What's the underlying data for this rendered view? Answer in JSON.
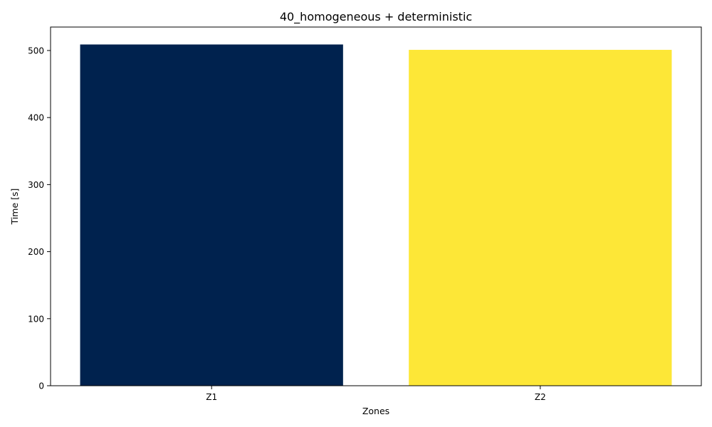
{
  "chart_data": {
    "type": "bar",
    "title": "40_homogeneous + deterministic",
    "xlabel": "Zones",
    "ylabel": "Time [s]",
    "categories": [
      "Z1",
      "Z2"
    ],
    "values": [
      509,
      501
    ],
    "bar_colors": [
      "#00224e",
      "#fde737"
    ],
    "ylim": [
      0,
      535
    ],
    "yticks": [
      0,
      100,
      200,
      300,
      400,
      500
    ],
    "grid": false,
    "legend": "none"
  }
}
